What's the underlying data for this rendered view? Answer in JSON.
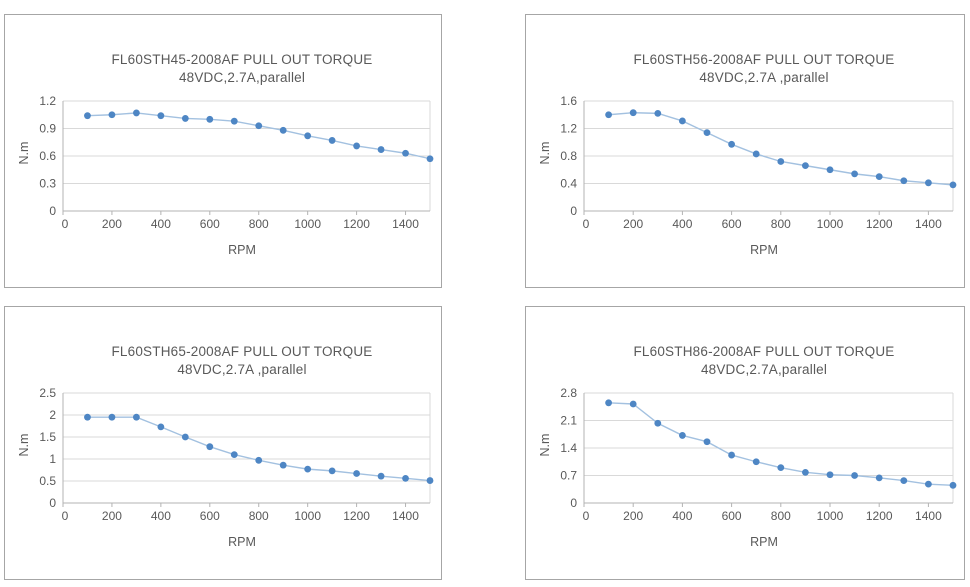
{
  "theme": {
    "background_color": "#ffffff",
    "panel_border_color": "#a6a6a6",
    "text_color": "#595959",
    "gridline_color": "#d9d9d9",
    "axis_color": "#b3b3b3",
    "marker_color": "#4e86c4",
    "line_color": "#a3c1e0"
  },
  "chart_data": [
    {
      "type": "line",
      "title": "FL60STH45-2008AF PULL OUT TORQUE",
      "subtitle": "48VDC,2.7A,parallel",
      "xlabel": "RPM",
      "ylabel": "N.m",
      "x": [
        100,
        200,
        300,
        400,
        500,
        600,
        700,
        800,
        900,
        1000,
        1100,
        1200,
        1300,
        1400,
        1500
      ],
      "values": [
        1.04,
        1.05,
        1.07,
        1.04,
        1.01,
        1.0,
        0.98,
        0.93,
        0.88,
        0.82,
        0.77,
        0.71,
        0.67,
        0.63,
        0.57
      ],
      "xlim": [
        0,
        1500
      ],
      "ylim": [
        0,
        1.2
      ],
      "xticks": [
        0,
        200,
        400,
        600,
        800,
        1000,
        1200,
        1400
      ],
      "xtick_labels": [
        "0",
        "200",
        "400",
        "600",
        "800",
        "1000",
        "1200",
        "1400"
      ],
      "yticks": [
        0,
        0.3,
        0.6,
        0.9,
        1.2
      ],
      "ytick_labels": [
        "0",
        "0.3",
        "0.6",
        "0.9",
        "1.2"
      ],
      "grid": true,
      "legend": false
    },
    {
      "type": "line",
      "title": "FL60STH56-2008AF PULL OUT TORQUE",
      "subtitle": "48VDC,2.7A ,parallel",
      "xlabel": "RPM",
      "ylabel": "N.m",
      "x": [
        100,
        200,
        300,
        400,
        500,
        600,
        700,
        800,
        900,
        1000,
        1100,
        1200,
        1300,
        1400,
        1500
      ],
      "values": [
        1.4,
        1.43,
        1.42,
        1.31,
        1.14,
        0.97,
        0.83,
        0.72,
        0.66,
        0.6,
        0.54,
        0.5,
        0.44,
        0.41,
        0.38
      ],
      "xlim": [
        0,
        1500
      ],
      "ylim": [
        0,
        1.6
      ],
      "xticks": [
        0,
        200,
        400,
        600,
        800,
        1000,
        1200,
        1400
      ],
      "xtick_labels": [
        "0",
        "200",
        "400",
        "600",
        "800",
        "1000",
        "1200",
        "1400"
      ],
      "yticks": [
        0,
        0.4,
        0.8,
        1.2,
        1.6
      ],
      "ytick_labels": [
        "0",
        "0.4",
        "0.8",
        "1.2",
        "1.6"
      ],
      "grid": true,
      "legend": false
    },
    {
      "type": "line",
      "title": "FL60STH65-2008AF PULL OUT TORQUE",
      "subtitle": "48VDC,2.7A ,parallel",
      "xlabel": "RPM",
      "ylabel": "N.m",
      "x": [
        100,
        200,
        300,
        400,
        500,
        600,
        700,
        800,
        900,
        1000,
        1100,
        1200,
        1300,
        1400,
        1500
      ],
      "values": [
        1.95,
        1.95,
        1.95,
        1.73,
        1.5,
        1.28,
        1.1,
        0.97,
        0.86,
        0.77,
        0.73,
        0.67,
        0.61,
        0.56,
        0.51
      ],
      "xlim": [
        0,
        1500
      ],
      "ylim": [
        0,
        2.5
      ],
      "xticks": [
        0,
        200,
        400,
        600,
        800,
        1000,
        1200,
        1400
      ],
      "xtick_labels": [
        "0",
        "200",
        "400",
        "600",
        "800",
        "1000",
        "1200",
        "1400"
      ],
      "yticks": [
        0,
        0.5,
        1,
        1.5,
        2,
        2.5
      ],
      "ytick_labels": [
        "0",
        "0.5",
        "1",
        "1.5",
        "2",
        "2.5"
      ],
      "grid": true,
      "legend": false
    },
    {
      "type": "line",
      "title": "FL60STH86-2008AF PULL OUT TORQUE",
      "subtitle": "48VDC,2.7A,parallel",
      "xlabel": "RPM",
      "ylabel": "N.m",
      "x": [
        100,
        200,
        300,
        400,
        500,
        600,
        700,
        800,
        900,
        1000,
        1100,
        1200,
        1300,
        1400,
        1500
      ],
      "values": [
        2.55,
        2.52,
        2.03,
        1.72,
        1.56,
        1.22,
        1.05,
        0.9,
        0.78,
        0.72,
        0.7,
        0.64,
        0.57,
        0.48,
        0.45
      ],
      "xlim": [
        0,
        1500
      ],
      "ylim": [
        0,
        2.8
      ],
      "xticks": [
        0,
        200,
        400,
        600,
        800,
        1000,
        1200,
        1400
      ],
      "xtick_labels": [
        "0",
        "200",
        "400",
        "600",
        "800",
        "1000",
        "1200",
        "1400"
      ],
      "yticks": [
        0,
        0.7,
        1.4,
        2.1,
        2.8
      ],
      "ytick_labels": [
        "0",
        "0.7",
        "1.4",
        "2.1",
        "2.8"
      ],
      "grid": true,
      "legend": false
    }
  ]
}
